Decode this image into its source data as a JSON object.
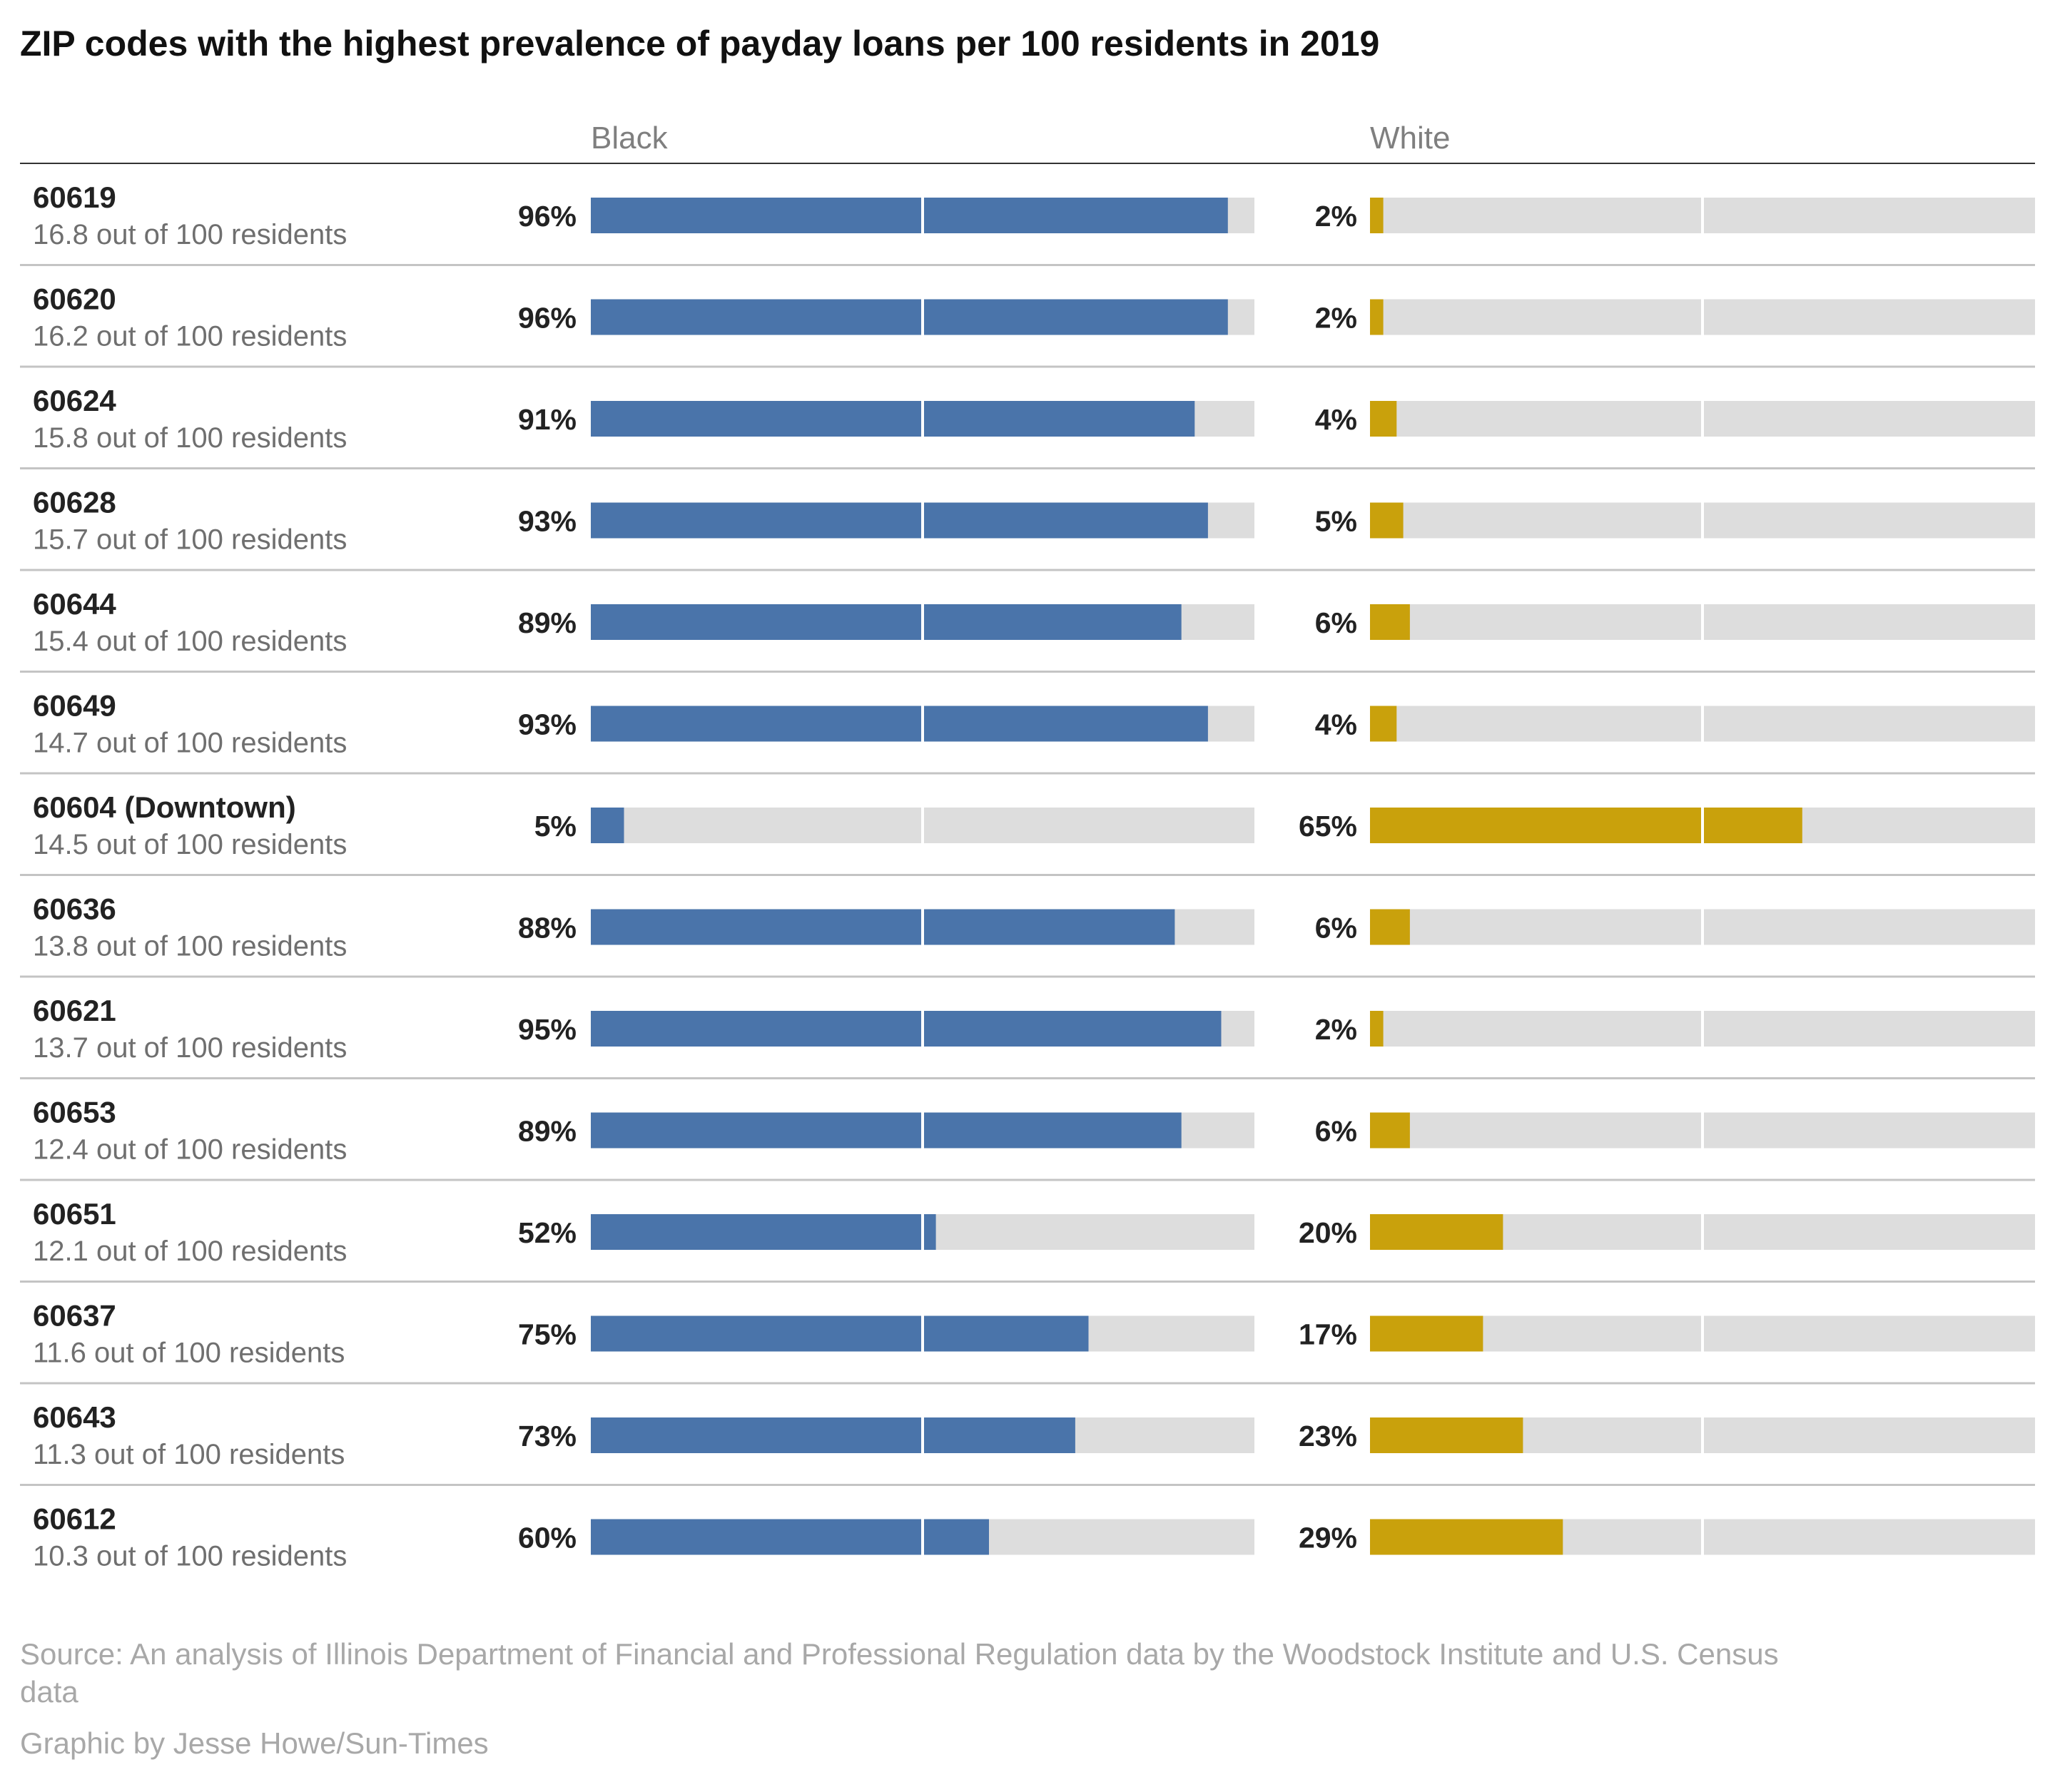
{
  "title": "ZIP codes with the highest prevalence of payday loans per 100 residents in 2019",
  "footer": {
    "source_line1": "Source: An analysis of Illinois Department of Financial and Professional Regulation data by the Woodstock Institute and U.S. Census",
    "source_line2": "data",
    "credit": "Graphic by Jesse Howe/Sun-Times"
  },
  "colors": {
    "black_bar": "#4a74aa",
    "white_bar": "#c9a10c",
    "track": "#dddddd",
    "row_divider": "#c4c4c4",
    "header_rule": "#333333"
  },
  "chart_data": {
    "type": "bar",
    "orientation": "horizontal",
    "title": "ZIP codes with the highest prevalence of payday loans per 100 residents in 2019",
    "columns": [
      "Black",
      "White"
    ],
    "xlim": [
      0,
      100
    ],
    "unit": "%",
    "rows": [
      {
        "zip": "60619",
        "sub": "16.8 out of 100 residents",
        "black": 96,
        "white": 2
      },
      {
        "zip": "60620",
        "sub": "16.2 out of 100 residents",
        "black": 96,
        "white": 2
      },
      {
        "zip": "60624",
        "sub": "15.8 out of 100 residents",
        "black": 91,
        "white": 4
      },
      {
        "zip": "60628",
        "sub": "15.7 out of 100 residents",
        "black": 93,
        "white": 5
      },
      {
        "zip": "60644",
        "sub": "15.4 out of 100 residents",
        "black": 89,
        "white": 6
      },
      {
        "zip": "60649",
        "sub": "14.7 out of 100 residents",
        "black": 93,
        "white": 4
      },
      {
        "zip": "60604 (Downtown)",
        "sub": "14.5 out of 100 residents",
        "black": 5,
        "white": 65
      },
      {
        "zip": "60636",
        "sub": "13.8 out of 100 residents",
        "black": 88,
        "white": 6
      },
      {
        "zip": "60621",
        "sub": "13.7 out of 100 residents",
        "black": 95,
        "white": 2
      },
      {
        "zip": "60653",
        "sub": "12.4 out of 100 residents",
        "black": 89,
        "white": 6
      },
      {
        "zip": "60651",
        "sub": "12.1 out of 100 residents",
        "black": 52,
        "white": 20
      },
      {
        "zip": "60637",
        "sub": "11.6 out of 100 residents",
        "black": 75,
        "white": 17
      },
      {
        "zip": "60643",
        "sub": "11.3 out of 100 residents",
        "black": 73,
        "white": 23
      },
      {
        "zip": "60612",
        "sub": "10.3 out of 100 residents",
        "black": 60,
        "white": 29
      }
    ]
  }
}
